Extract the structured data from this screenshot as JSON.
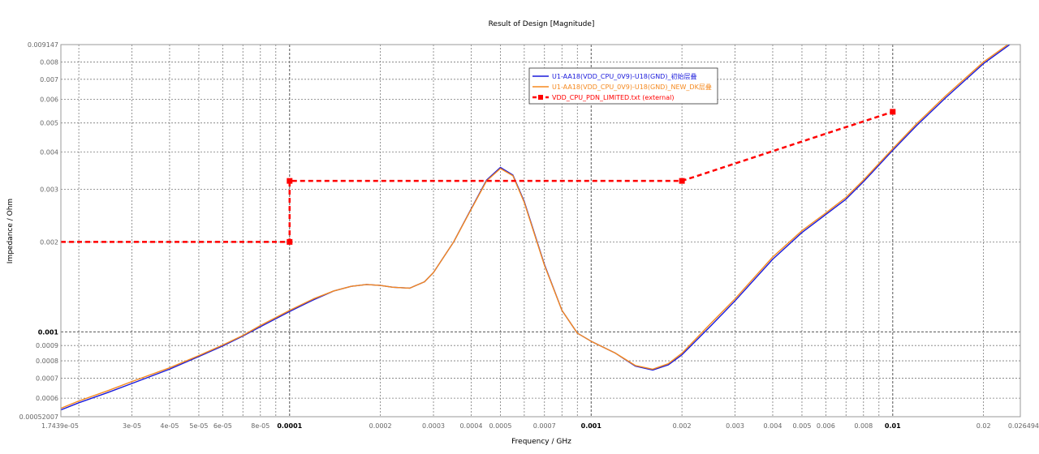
{
  "chart_data": {
    "type": "line",
    "title": "Result of Design [Magnitude]",
    "xlabel": "Frequency / GHz",
    "ylabel": "Impedance / Ohm",
    "xscale": "log",
    "yscale": "log",
    "xlim": [
      1.7439e-05,
      0.026494
    ],
    "ylim": [
      0.00052007,
      0.009147
    ],
    "grid": true,
    "legend_position": "top-center",
    "x_ticks": [
      {
        "value": 1.7439e-05,
        "label": "1.7439e-05",
        "bold": false
      },
      {
        "value": 3e-05,
        "label": "3e-05",
        "bold": false
      },
      {
        "value": 4e-05,
        "label": "4e-05",
        "bold": false
      },
      {
        "value": 5e-05,
        "label": "5e-05",
        "bold": false
      },
      {
        "value": 6e-05,
        "label": "6e-05",
        "bold": false
      },
      {
        "value": 8e-05,
        "label": "8e-05",
        "bold": false
      },
      {
        "value": 0.0001,
        "label": "0.0001",
        "bold": true
      },
      {
        "value": 0.0002,
        "label": "0.0002",
        "bold": false
      },
      {
        "value": 0.0003,
        "label": "0.0003",
        "bold": false
      },
      {
        "value": 0.0004,
        "label": "0.0004",
        "bold": false
      },
      {
        "value": 0.0005,
        "label": "0.0005",
        "bold": false
      },
      {
        "value": 0.0007,
        "label": "0.0007",
        "bold": false
      },
      {
        "value": 0.001,
        "label": "0.001",
        "bold": true
      },
      {
        "value": 0.002,
        "label": "0.002",
        "bold": false
      },
      {
        "value": 0.003,
        "label": "0.003",
        "bold": false
      },
      {
        "value": 0.004,
        "label": "0.004",
        "bold": false
      },
      {
        "value": 0.005,
        "label": "0.005",
        "bold": false
      },
      {
        "value": 0.006,
        "label": "0.006",
        "bold": false
      },
      {
        "value": 0.008,
        "label": "0.008",
        "bold": false
      },
      {
        "value": 0.01,
        "label": "0.01",
        "bold": true
      },
      {
        "value": 0.02,
        "label": "0.02",
        "bold": false
      },
      {
        "value": 0.026494,
        "label": "0.026494",
        "bold": false
      }
    ],
    "x_minor_gridlines": [
      2e-05,
      3e-05,
      4e-05,
      5e-05,
      6e-05,
      7e-05,
      8e-05,
      9e-05,
      0.0002,
      0.0003,
      0.0004,
      0.0005,
      0.0006,
      0.0007,
      0.0008,
      0.0009,
      0.002,
      0.003,
      0.004,
      0.005,
      0.006,
      0.007,
      0.008,
      0.009,
      0.02
    ],
    "y_ticks": [
      {
        "value": 0.00052007,
        "label": "0.00052007",
        "bold": false
      },
      {
        "value": 0.0006,
        "label": "0.0006",
        "bold": false
      },
      {
        "value": 0.0007,
        "label": "0.0007",
        "bold": false
      },
      {
        "value": 0.0008,
        "label": "0.0008",
        "bold": false
      },
      {
        "value": 0.0009,
        "label": "0.0009",
        "bold": false
      },
      {
        "value": 0.001,
        "label": "0.001",
        "bold": true
      },
      {
        "value": 0.002,
        "label": "0.002",
        "bold": false
      },
      {
        "value": 0.003,
        "label": "0.003",
        "bold": false
      },
      {
        "value": 0.004,
        "label": "0.004",
        "bold": false
      },
      {
        "value": 0.005,
        "label": "0.005",
        "bold": false
      },
      {
        "value": 0.006,
        "label": "0.006",
        "bold": false
      },
      {
        "value": 0.007,
        "label": "0.007",
        "bold": false
      },
      {
        "value": 0.008,
        "label": "0.008",
        "bold": false
      },
      {
        "value": 0.009147,
        "label": "0.009147",
        "bold": false
      }
    ],
    "y_minor_gridlines": [
      0.0006,
      0.0007,
      0.0008,
      0.0009,
      0.002,
      0.003,
      0.004,
      0.005,
      0.006,
      0.007,
      0.008
    ],
    "series": [
      {
        "name": "U1-AA18(VDD_CPU_0V9)-U18(GND)_初始层叠",
        "color": "#1a1adb",
        "style": "solid",
        "markers": false,
        "points": [
          [
            1.7439e-05,
            0.000548
          ],
          [
            2e-05,
            0.000579
          ],
          [
            2.5e-05,
            0.000627
          ],
          [
            3e-05,
            0.000672
          ],
          [
            4e-05,
            0.00075
          ],
          [
            5e-05,
            0.000827
          ],
          [
            6e-05,
            0.000897
          ],
          [
            7e-05,
            0.000968
          ],
          [
            8e-05,
            0.00104
          ],
          [
            0.0001,
            0.00117
          ],
          [
            0.00012,
            0.00128
          ],
          [
            0.00014,
            0.00137
          ],
          [
            0.00016,
            0.00142
          ],
          [
            0.00018,
            0.00144
          ],
          [
            0.0002,
            0.00143
          ],
          [
            0.00022,
            0.00141
          ],
          [
            0.00025,
            0.0014
          ],
          [
            0.00028,
            0.00147
          ],
          [
            0.0003,
            0.00158
          ],
          [
            0.00035,
            0.002
          ],
          [
            0.0004,
            0.00258
          ],
          [
            0.00045,
            0.00322
          ],
          [
            0.0005,
            0.00355
          ],
          [
            0.00055,
            0.00335
          ],
          [
            0.0006,
            0.00273
          ],
          [
            0.0007,
            0.00168
          ],
          [
            0.0008,
            0.00118
          ],
          [
            0.0009,
            0.00099
          ],
          [
            0.001,
            0.00093
          ],
          [
            0.0012,
            0.00085
          ],
          [
            0.0014,
            0.000768
          ],
          [
            0.0016,
            0.000745
          ],
          [
            0.0018,
            0.000775
          ],
          [
            0.002,
            0.000838
          ],
          [
            0.0025,
            0.00105
          ],
          [
            0.003,
            0.00127
          ],
          [
            0.004,
            0.00175
          ],
          [
            0.005,
            0.00215
          ],
          [
            0.006,
            0.00247
          ],
          [
            0.007,
            0.00278
          ],
          [
            0.008,
            0.00318
          ],
          [
            0.01,
            0.00405
          ],
          [
            0.012,
            0.0049
          ],
          [
            0.015,
            0.00608
          ],
          [
            0.02,
            0.0079
          ],
          [
            0.025,
            0.0093
          ]
        ]
      },
      {
        "name": "U1-AA18(VDD_CPU_0V9)-U18(GND)_NEW_DK层叠",
        "color": "#f5891e",
        "style": "solid",
        "markers": false,
        "points": [
          [
            1.7439e-05,
            0.000555
          ],
          [
            2e-05,
            0.000587
          ],
          [
            2.5e-05,
            0.000636
          ],
          [
            3e-05,
            0.000682
          ],
          [
            4e-05,
            0.000758
          ],
          [
            5e-05,
            0.000833
          ],
          [
            6e-05,
            0.000903
          ],
          [
            7e-05,
            0.000973
          ],
          [
            8e-05,
            0.00105
          ],
          [
            0.0001,
            0.00118
          ],
          [
            0.00012,
            0.00129
          ],
          [
            0.00014,
            0.00137
          ],
          [
            0.00016,
            0.00142
          ],
          [
            0.00018,
            0.00144
          ],
          [
            0.0002,
            0.00143
          ],
          [
            0.00022,
            0.00141
          ],
          [
            0.00025,
            0.0014
          ],
          [
            0.00028,
            0.00147
          ],
          [
            0.0003,
            0.00158
          ],
          [
            0.00035,
            0.002
          ],
          [
            0.0004,
            0.00257
          ],
          [
            0.00045,
            0.0032
          ],
          [
            0.0005,
            0.00352
          ],
          [
            0.00055,
            0.00333
          ],
          [
            0.0006,
            0.00271
          ],
          [
            0.0007,
            0.00167
          ],
          [
            0.0008,
            0.00118
          ],
          [
            0.0009,
            0.00099
          ],
          [
            0.001,
            0.00093
          ],
          [
            0.0012,
            0.00085
          ],
          [
            0.0014,
            0.000772
          ],
          [
            0.0016,
            0.00075
          ],
          [
            0.0018,
            0.000782
          ],
          [
            0.002,
            0.000848
          ],
          [
            0.0025,
            0.00107
          ],
          [
            0.003,
            0.00129
          ],
          [
            0.004,
            0.00178
          ],
          [
            0.005,
            0.00218
          ],
          [
            0.006,
            0.0025
          ],
          [
            0.007,
            0.00282
          ],
          [
            0.008,
            0.00322
          ],
          [
            0.01,
            0.0041
          ],
          [
            0.012,
            0.00497
          ],
          [
            0.015,
            0.00617
          ],
          [
            0.02,
            0.008
          ],
          [
            0.025,
            0.0094
          ]
        ]
      },
      {
        "name": "VDD_CPU_PDN_LIMITED.txt (external)",
        "color": "#ff0000",
        "style": "dashed",
        "markers": true,
        "points": [
          [
            1.7439e-05,
            0.002
          ],
          [
            0.0001,
            0.002
          ],
          [
            0.0001,
            0.0032
          ],
          [
            0.002,
            0.0032
          ],
          [
            0.01,
            0.00545
          ]
        ],
        "marker_points": [
          [
            0.0001,
            0.002
          ],
          [
            0.0001,
            0.0032
          ],
          [
            0.002,
            0.0032
          ],
          [
            0.01,
            0.00545
          ]
        ]
      }
    ]
  }
}
